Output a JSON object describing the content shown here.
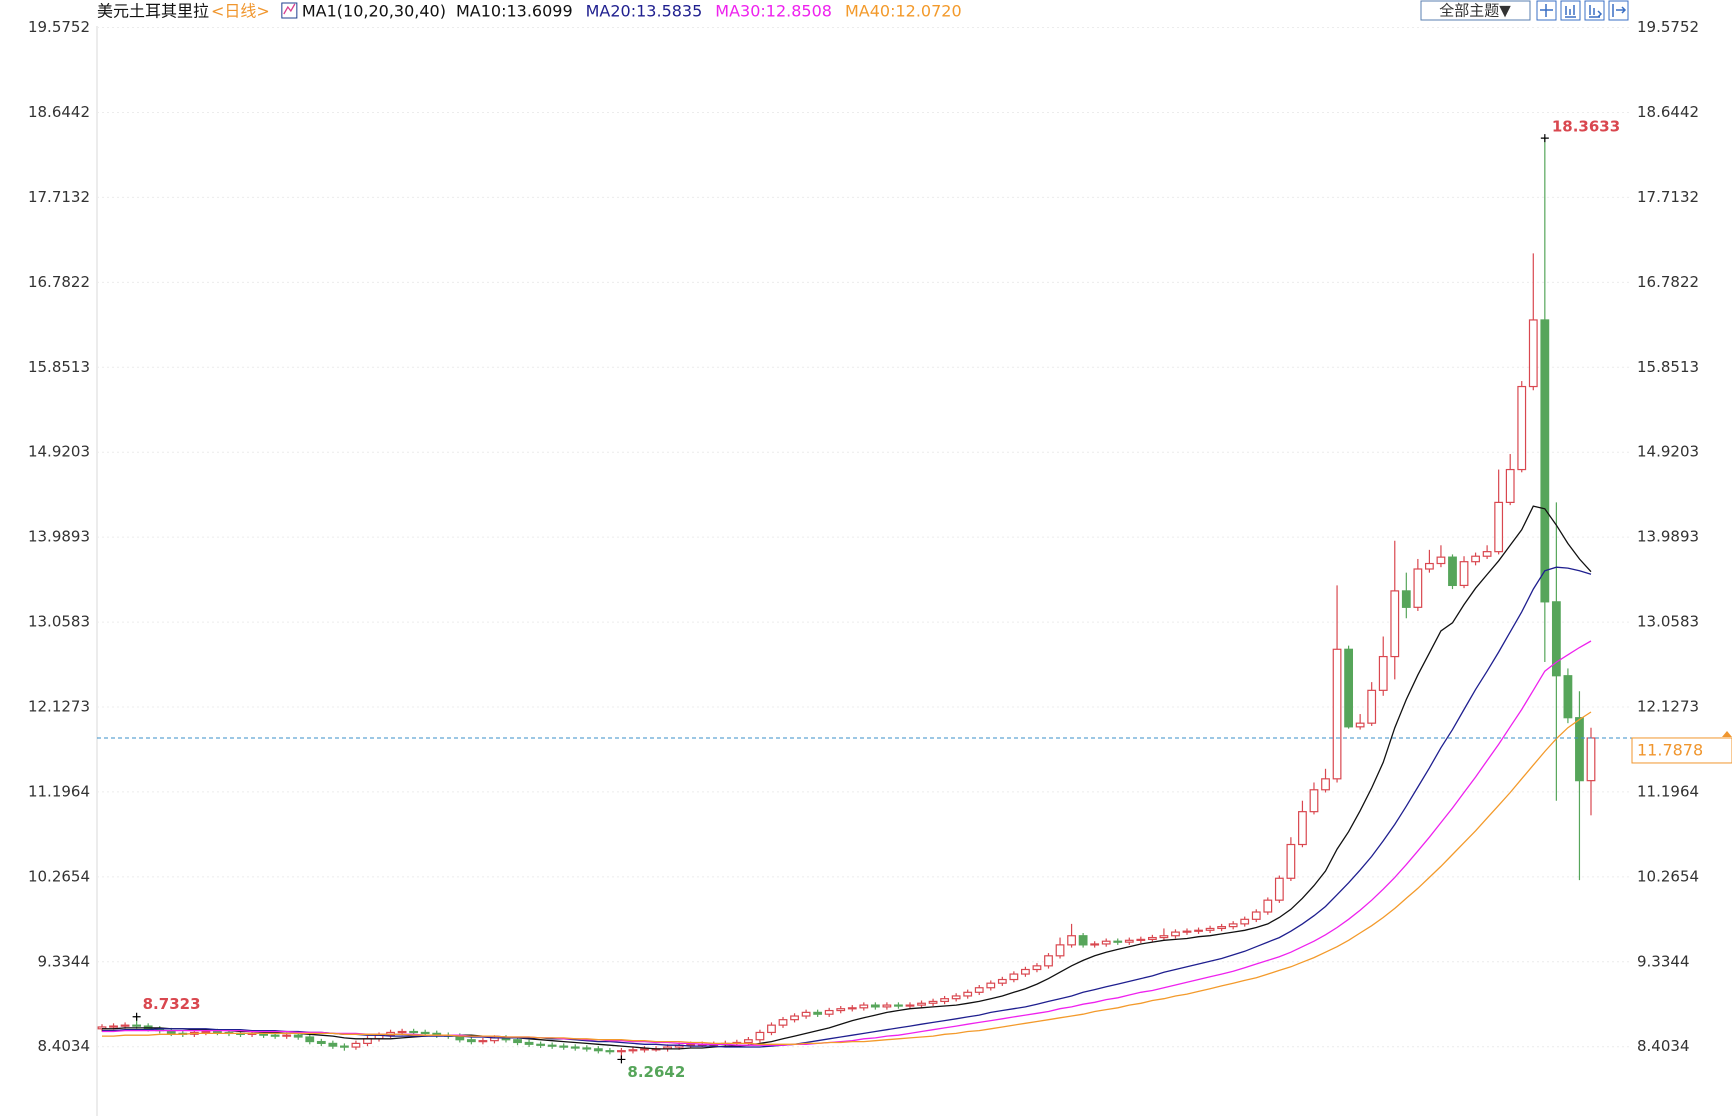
{
  "chart_data": {
    "type": "candlestick",
    "title": "美元土耳其里拉",
    "period": "<日线>",
    "indicator": "MA1(10,20,30,40)",
    "up_color": "#d9474f",
    "down_color": "#56a55a",
    "price_line_color": "#3a8fc9",
    "last_price_color": "#f0962e",
    "grid": true,
    "ylim": [
      7.677,
      19.877
    ],
    "yticks": [
      8.4034,
      9.3344,
      10.2654,
      11.1964,
      12.1273,
      13.0583,
      13.9893,
      14.9203,
      15.8513,
      16.7822,
      17.7132,
      18.6442,
      19.5752
    ],
    "open": [
      8.6,
      8.62,
      8.63,
      8.64,
      8.63,
      8.6,
      8.58,
      8.55,
      8.54,
      8.56,
      8.57,
      8.56,
      8.55,
      8.54,
      8.55,
      8.53,
      8.52,
      8.53,
      8.51,
      8.46,
      8.44,
      8.41,
      8.4,
      8.44,
      8.49,
      8.53,
      8.56,
      8.57,
      8.56,
      8.55,
      8.53,
      8.52,
      8.48,
      8.46,
      8.47,
      8.5,
      8.48,
      8.45,
      8.43,
      8.42,
      8.41,
      8.4,
      8.39,
      8.38,
      8.36,
      8.35,
      8.36,
      8.37,
      8.38,
      8.38,
      8.4,
      8.42,
      8.43,
      8.43,
      8.43,
      8.44,
      8.45,
      8.48,
      8.56,
      8.64,
      8.7,
      8.74,
      8.78,
      8.76,
      8.8,
      8.82,
      8.83,
      8.86,
      8.84,
      8.86,
      8.85,
      8.86,
      8.88,
      8.9,
      8.93,
      8.96,
      9.0,
      9.05,
      9.1,
      9.14,
      9.2,
      9.25,
      9.29,
      9.4,
      9.52,
      9.62,
      9.52,
      9.53,
      9.56,
      9.55,
      9.57,
      9.58,
      9.6,
      9.62,
      9.66,
      9.67,
      9.68,
      9.7,
      9.72,
      9.75,
      9.8,
      9.88,
      10.01,
      10.25,
      10.62,
      10.98,
      11.22,
      11.34,
      12.76,
      11.91,
      11.95,
      12.31,
      12.68,
      13.4,
      13.22,
      13.64,
      13.7,
      13.77,
      13.46,
      13.72,
      13.78,
      13.83,
      14.37,
      14.73,
      15.64,
      16.37,
      13.28,
      12.47,
      12.01,
      11.32
    ],
    "high": [
      8.65,
      8.66,
      8.67,
      8.7323,
      8.66,
      8.63,
      8.61,
      8.58,
      8.59,
      8.6,
      8.6,
      8.59,
      8.58,
      8.58,
      8.58,
      8.56,
      8.56,
      8.56,
      8.54,
      8.49,
      8.47,
      8.44,
      8.47,
      8.52,
      8.56,
      8.59,
      8.6,
      8.6,
      8.59,
      8.58,
      8.56,
      8.55,
      8.51,
      8.5,
      8.53,
      8.53,
      8.51,
      8.48,
      8.46,
      8.45,
      8.44,
      8.43,
      8.42,
      8.41,
      8.39,
      8.39,
      8.4,
      8.41,
      8.41,
      8.43,
      8.45,
      8.46,
      8.46,
      8.46,
      8.47,
      8.48,
      8.51,
      8.59,
      8.67,
      8.73,
      8.77,
      8.81,
      8.81,
      8.83,
      8.85,
      8.86,
      8.89,
      8.89,
      8.89,
      8.89,
      8.89,
      8.91,
      8.93,
      8.96,
      8.99,
      9.03,
      9.08,
      9.13,
      9.17,
      9.23,
      9.28,
      9.32,
      9.43,
      9.6,
      9.75,
      9.65,
      9.56,
      9.59,
      9.59,
      9.6,
      9.61,
      9.63,
      9.7,
      9.69,
      9.7,
      9.71,
      9.73,
      9.75,
      9.78,
      9.83,
      9.91,
      10.04,
      10.28,
      10.7,
      11.1,
      11.3,
      11.45,
      13.46,
      12.8,
      12.05,
      12.4,
      12.9,
      13.95,
      13.6,
      13.75,
      13.85,
      13.9,
      13.8,
      13.78,
      13.82,
      13.9,
      14.73,
      14.9,
      15.7,
      17.1,
      18.3633,
      14.37,
      12.55,
      12.3,
      11.9
    ],
    "low": [
      8.57,
      8.59,
      8.6,
      8.6,
      8.57,
      8.55,
      8.52,
      8.51,
      8.51,
      8.53,
      8.53,
      8.52,
      8.51,
      8.51,
      8.5,
      8.49,
      8.49,
      8.48,
      8.43,
      8.41,
      8.38,
      8.36,
      8.37,
      8.41,
      8.46,
      8.5,
      8.53,
      8.53,
      8.52,
      8.5,
      8.49,
      8.45,
      8.43,
      8.43,
      8.44,
      8.45,
      8.42,
      8.4,
      8.39,
      8.38,
      8.37,
      8.36,
      8.35,
      8.33,
      8.32,
      8.2642,
      8.33,
      8.34,
      8.35,
      8.35,
      8.37,
      8.39,
      8.4,
      8.4,
      8.4,
      8.41,
      8.42,
      8.45,
      8.53,
      8.61,
      8.67,
      8.71,
      8.73,
      8.73,
      8.77,
      8.79,
      8.8,
      8.81,
      8.81,
      8.82,
      8.82,
      8.83,
      8.85,
      8.87,
      8.9,
      8.93,
      8.97,
      9.02,
      9.07,
      9.11,
      9.17,
      9.22,
      9.26,
      9.37,
      9.49,
      9.49,
      9.49,
      9.5,
      9.52,
      9.52,
      9.54,
      9.55,
      9.57,
      9.59,
      9.63,
      9.64,
      9.65,
      9.67,
      9.69,
      9.72,
      9.77,
      9.85,
      9.98,
      10.22,
      10.59,
      10.95,
      11.19,
      11.3,
      11.89,
      11.88,
      11.92,
      12.25,
      12.43,
      13.1,
      13.18,
      13.6,
      13.66,
      13.42,
      13.43,
      13.68,
      13.75,
      13.8,
      14.34,
      14.7,
      15.6,
      12.62,
      11.1,
      11.95,
      10.23,
      10.94
    ],
    "close": [
      8.62,
      8.63,
      8.64,
      8.63,
      8.6,
      8.58,
      8.55,
      8.54,
      8.56,
      8.57,
      8.56,
      8.55,
      8.54,
      8.55,
      8.53,
      8.52,
      8.53,
      8.51,
      8.46,
      8.44,
      8.41,
      8.4,
      8.44,
      8.49,
      8.53,
      8.56,
      8.57,
      8.56,
      8.55,
      8.53,
      8.52,
      8.48,
      8.46,
      8.47,
      8.5,
      8.48,
      8.45,
      8.43,
      8.42,
      8.41,
      8.4,
      8.39,
      8.38,
      8.36,
      8.35,
      8.36,
      8.37,
      8.38,
      8.38,
      8.4,
      8.42,
      8.43,
      8.43,
      8.43,
      8.44,
      8.45,
      8.48,
      8.56,
      8.64,
      8.7,
      8.74,
      8.78,
      8.76,
      8.8,
      8.82,
      8.83,
      8.86,
      8.84,
      8.86,
      8.85,
      8.86,
      8.88,
      8.9,
      8.93,
      8.96,
      9.0,
      9.05,
      9.1,
      9.14,
      9.2,
      9.25,
      9.29,
      9.4,
      9.52,
      9.62,
      9.52,
      9.53,
      9.56,
      9.55,
      9.57,
      9.58,
      9.6,
      9.62,
      9.66,
      9.67,
      9.68,
      9.7,
      9.72,
      9.75,
      9.8,
      9.88,
      10.01,
      10.25,
      10.62,
      10.98,
      11.22,
      11.34,
      12.76,
      11.91,
      11.95,
      12.31,
      12.68,
      13.4,
      13.22,
      13.64,
      13.7,
      13.77,
      13.46,
      13.72,
      13.78,
      13.83,
      14.37,
      14.73,
      15.64,
      16.37,
      13.28,
      12.47,
      12.01,
      11.32,
      11.7878
    ],
    "series": [
      {
        "name": "MA10:13.6099",
        "color": "#111111",
        "values": [
          8.6,
          8.6,
          8.61,
          8.61,
          8.61,
          8.61,
          8.6,
          8.6,
          8.59,
          8.59,
          8.59,
          8.58,
          8.57,
          8.57,
          8.56,
          8.56,
          8.55,
          8.55,
          8.54,
          8.53,
          8.52,
          8.5,
          8.49,
          8.49,
          8.49,
          8.49,
          8.5,
          8.51,
          8.52,
          8.53,
          8.53,
          8.53,
          8.53,
          8.52,
          8.52,
          8.51,
          8.5,
          8.49,
          8.48,
          8.47,
          8.46,
          8.45,
          8.44,
          8.43,
          8.42,
          8.41,
          8.4,
          8.39,
          8.38,
          8.38,
          8.38,
          8.39,
          8.39,
          8.4,
          8.41,
          8.41,
          8.42,
          8.44,
          8.46,
          8.49,
          8.52,
          8.55,
          8.58,
          8.61,
          8.65,
          8.69,
          8.72,
          8.75,
          8.78,
          8.8,
          8.82,
          8.83,
          8.84,
          8.85,
          8.86,
          8.88,
          8.9,
          8.93,
          8.96,
          9.0,
          9.04,
          9.09,
          9.15,
          9.22,
          9.29,
          9.35,
          9.4,
          9.44,
          9.47,
          9.5,
          9.53,
          9.55,
          9.57,
          9.58,
          9.59,
          9.61,
          9.62,
          9.64,
          9.66,
          9.68,
          9.71,
          9.75,
          9.82,
          9.91,
          10.03,
          10.17,
          10.33,
          10.57,
          10.76,
          10.99,
          11.24,
          11.52,
          11.9,
          12.21,
          12.48,
          12.72,
          12.96,
          13.05,
          13.25,
          13.43,
          13.58,
          13.73,
          13.9,
          14.07,
          14.33,
          14.3,
          14.12,
          13.92,
          13.75,
          13.6099
        ]
      },
      {
        "name": "MA20:13.5835",
        "color": "#1f1f8f",
        "values": [
          8.58,
          8.58,
          8.59,
          8.59,
          8.59,
          8.6,
          8.6,
          8.6,
          8.6,
          8.6,
          8.59,
          8.59,
          8.59,
          8.58,
          8.58,
          8.58,
          8.57,
          8.57,
          8.56,
          8.56,
          8.55,
          8.54,
          8.54,
          8.53,
          8.53,
          8.52,
          8.52,
          8.52,
          8.52,
          8.52,
          8.52,
          8.52,
          8.51,
          8.51,
          8.5,
          8.5,
          8.5,
          8.5,
          8.5,
          8.49,
          8.49,
          8.48,
          8.47,
          8.46,
          8.46,
          8.45,
          8.44,
          8.43,
          8.43,
          8.42,
          8.42,
          8.41,
          8.41,
          8.41,
          8.4,
          8.4,
          8.4,
          8.4,
          8.41,
          8.42,
          8.43,
          8.45,
          8.47,
          8.49,
          8.51,
          8.53,
          8.55,
          8.57,
          8.59,
          8.61,
          8.63,
          8.65,
          8.67,
          8.69,
          8.71,
          8.73,
          8.75,
          8.78,
          8.8,
          8.82,
          8.84,
          8.87,
          8.9,
          8.93,
          8.96,
          9.0,
          9.03,
          9.06,
          9.09,
          9.12,
          9.15,
          9.18,
          9.22,
          9.25,
          9.28,
          9.31,
          9.34,
          9.37,
          9.41,
          9.45,
          9.5,
          9.55,
          9.6,
          9.67,
          9.75,
          9.84,
          9.94,
          10.07,
          10.2,
          10.34,
          10.49,
          10.66,
          10.84,
          11.04,
          11.25,
          11.46,
          11.68,
          11.88,
          12.1,
          12.32,
          12.52,
          12.73,
          12.95,
          13.17,
          13.42,
          13.62,
          13.66,
          13.65,
          13.62,
          13.5835
        ]
      },
      {
        "name": "MA30:12.8508",
        "color": "#ee22ee",
        "values": [
          8.57,
          8.57,
          8.58,
          8.58,
          8.58,
          8.58,
          8.58,
          8.58,
          8.58,
          8.58,
          8.58,
          8.58,
          8.58,
          8.57,
          8.57,
          8.57,
          8.57,
          8.56,
          8.56,
          8.56,
          8.55,
          8.55,
          8.55,
          8.54,
          8.54,
          8.54,
          8.54,
          8.54,
          8.53,
          8.53,
          8.53,
          8.53,
          8.52,
          8.52,
          8.52,
          8.51,
          8.51,
          8.51,
          8.5,
          8.5,
          8.49,
          8.49,
          8.48,
          8.48,
          8.47,
          8.47,
          8.46,
          8.46,
          8.45,
          8.45,
          8.44,
          8.44,
          8.43,
          8.43,
          8.43,
          8.42,
          8.42,
          8.42,
          8.42,
          8.42,
          8.43,
          8.43,
          8.44,
          8.45,
          8.46,
          8.47,
          8.49,
          8.5,
          8.52,
          8.53,
          8.55,
          8.57,
          8.59,
          8.61,
          8.63,
          8.65,
          8.67,
          8.69,
          8.71,
          8.73,
          8.75,
          8.77,
          8.79,
          8.82,
          8.84,
          8.87,
          8.89,
          8.92,
          8.94,
          8.97,
          9.0,
          9.02,
          9.05,
          9.08,
          9.11,
          9.14,
          9.17,
          9.2,
          9.23,
          9.27,
          9.31,
          9.35,
          9.39,
          9.44,
          9.5,
          9.56,
          9.63,
          9.71,
          9.8,
          9.9,
          10.01,
          10.13,
          10.26,
          10.4,
          10.55,
          10.7,
          10.86,
          11.02,
          11.19,
          11.36,
          11.54,
          11.72,
          11.91,
          12.1,
          12.31,
          12.52,
          12.62,
          12.7,
          12.78,
          12.8508
        ]
      },
      {
        "name": "MA40:12.0720",
        "color": "#f39a2b",
        "values": [
          8.52,
          8.52,
          8.53,
          8.53,
          8.53,
          8.54,
          8.54,
          8.54,
          8.55,
          8.55,
          8.55,
          8.55,
          8.55,
          8.55,
          8.55,
          8.55,
          8.55,
          8.55,
          8.55,
          8.55,
          8.55,
          8.54,
          8.54,
          8.54,
          8.54,
          8.54,
          8.54,
          8.53,
          8.53,
          8.53,
          8.53,
          8.52,
          8.52,
          8.52,
          8.52,
          8.51,
          8.51,
          8.51,
          8.5,
          8.5,
          8.5,
          8.49,
          8.49,
          8.48,
          8.48,
          8.48,
          8.47,
          8.47,
          8.46,
          8.46,
          8.46,
          8.45,
          8.45,
          8.44,
          8.44,
          8.44,
          8.44,
          8.43,
          8.43,
          8.43,
          8.43,
          8.44,
          8.44,
          8.45,
          8.45,
          8.46,
          8.46,
          8.47,
          8.48,
          8.49,
          8.5,
          8.51,
          8.52,
          8.54,
          8.55,
          8.57,
          8.58,
          8.6,
          8.62,
          8.64,
          8.66,
          8.68,
          8.7,
          8.72,
          8.74,
          8.76,
          8.79,
          8.81,
          8.83,
          8.86,
          8.88,
          8.91,
          8.93,
          8.96,
          8.98,
          9.01,
          9.04,
          9.07,
          9.1,
          9.13,
          9.16,
          9.2,
          9.24,
          9.28,
          9.33,
          9.38,
          9.44,
          9.5,
          9.57,
          9.65,
          9.73,
          9.82,
          9.92,
          10.03,
          10.14,
          10.26,
          10.38,
          10.51,
          10.64,
          10.77,
          10.91,
          11.05,
          11.19,
          11.34,
          11.49,
          11.64,
          11.78,
          11.9,
          11.99,
          12.072
        ]
      }
    ]
  },
  "toolbar": {
    "theme_button": "全部主题▼"
  }
}
